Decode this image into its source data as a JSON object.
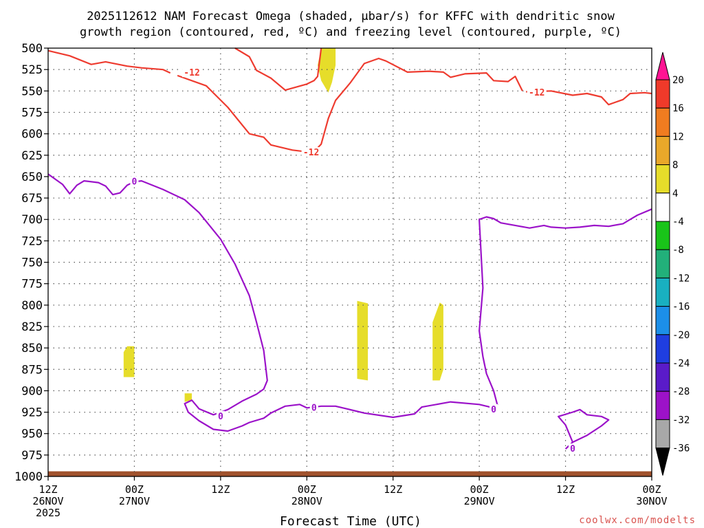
{
  "colors": {
    "omega_shade": "#e6dd2a",
    "dgz_contour": "#ee3b2f",
    "freezing_contour": "#9b12c9",
    "ground": "#a0522d",
    "credit": "#d9534f"
  },
  "chart_data": {
    "type": "area",
    "title_line1": "2025112612 NAM Forecast Omega (shaded, μbar/s) for KFFC with dendritic snow",
    "title_line2": "growth region (contoured, red, ºC) and freezing level (contoured, purple, ºC)",
    "xlabel": "Forecast Time (UTC)",
    "ylabel": "Pressure (mb)",
    "xlim_hours": [
      0,
      84
    ],
    "ylim_mb": [
      500,
      1000
    ],
    "y_ticks": [
      500,
      525,
      550,
      575,
      600,
      625,
      650,
      675,
      700,
      725,
      750,
      775,
      800,
      825,
      850,
      875,
      900,
      925,
      950,
      975,
      1000
    ],
    "y_tick_labels": [
      "500",
      "525",
      "550",
      "575",
      "600",
      "625",
      "650",
      "675",
      "700",
      "725",
      "750",
      "775",
      "800",
      "825",
      "850",
      "875",
      "900",
      "925",
      "950",
      "975",
      "1000"
    ],
    "x_ticks": [
      {
        "hour": 0,
        "top": "12Z",
        "mid": "26NOV",
        "bot": "2025"
      },
      {
        "hour": 12,
        "top": "00Z",
        "mid": "27NOV",
        "bot": ""
      },
      {
        "hour": 24,
        "top": "12Z",
        "mid": "",
        "bot": ""
      },
      {
        "hour": 36,
        "top": "00Z",
        "mid": "28NOV",
        "bot": ""
      },
      {
        "hour": 48,
        "top": "12Z",
        "mid": "",
        "bot": ""
      },
      {
        "hour": 60,
        "top": "00Z",
        "mid": "29NOV",
        "bot": ""
      },
      {
        "hour": 72,
        "top": "12Z",
        "mid": "",
        "bot": ""
      },
      {
        "hour": 84,
        "top": "00Z",
        "mid": "30NOV",
        "bot": ""
      }
    ],
    "dgz_contour": {
      "name": "-12 C",
      "segments": [
        [
          [
            0,
            503
          ],
          [
            3,
            509
          ],
          [
            6,
            519
          ],
          [
            8,
            516
          ],
          [
            11,
            521
          ],
          [
            13,
            523
          ],
          [
            16,
            525
          ],
          [
            17,
            529
          ]
        ],
        [
          [
            18,
            532
          ],
          [
            22,
            544
          ],
          [
            25,
            569
          ],
          [
            28,
            600
          ],
          [
            30,
            604
          ],
          [
            31,
            613
          ],
          [
            33,
            617
          ],
          [
            34,
            619
          ],
          [
            36,
            621
          ],
          [
            37,
            621
          ],
          [
            38,
            612
          ],
          [
            39,
            582
          ],
          [
            40,
            561
          ],
          [
            42,
            541
          ],
          [
            44,
            518
          ],
          [
            46,
            512
          ],
          [
            47,
            515
          ],
          [
            50,
            528
          ],
          [
            53,
            527
          ],
          [
            55,
            528
          ],
          [
            56,
            534
          ],
          [
            58,
            530
          ],
          [
            61,
            529
          ],
          [
            62,
            538
          ],
          [
            64,
            539
          ],
          [
            65,
            533
          ],
          [
            66,
            550
          ]
        ],
        [
          [
            26,
            500
          ],
          [
            28,
            510
          ],
          [
            29,
            526
          ],
          [
            31,
            535
          ],
          [
            33,
            549
          ],
          [
            36,
            542
          ],
          [
            37,
            538
          ],
          [
            37.5,
            533
          ],
          [
            38,
            500
          ]
        ],
        [
          [
            66.5,
            551
          ],
          [
            70,
            550
          ],
          [
            73,
            555
          ],
          [
            75,
            553
          ],
          [
            77,
            557
          ],
          [
            78,
            566
          ],
          [
            80,
            560
          ],
          [
            81,
            553
          ],
          [
            83,
            552
          ],
          [
            84,
            553
          ]
        ]
      ],
      "labels": [
        {
          "text": "-12",
          "hour": 20,
          "p": 529
        },
        {
          "text": "-12",
          "hour": 36.6,
          "p": 622
        },
        {
          "text": "-12",
          "hour": 68,
          "p": 552
        }
      ]
    },
    "freezing_contour": {
      "name": "0 C",
      "segments": [
        [
          [
            0,
            647
          ],
          [
            2,
            659
          ],
          [
            3,
            670
          ],
          [
            4,
            660
          ],
          [
            5,
            655
          ],
          [
            7,
            657
          ],
          [
            8,
            661
          ],
          [
            9,
            671
          ],
          [
            10,
            669
          ],
          [
            11,
            660
          ],
          [
            12,
            656
          ],
          [
            13,
            655
          ],
          [
            16,
            665
          ],
          [
            19,
            677
          ],
          [
            21,
            692
          ],
          [
            24,
            723
          ],
          [
            26,
            752
          ],
          [
            28,
            789
          ],
          [
            29,
            820
          ],
          [
            30,
            853
          ],
          [
            30.5,
            888
          ],
          [
            30,
            898
          ],
          [
            29,
            904
          ],
          [
            27,
            912
          ],
          [
            25,
            922
          ],
          [
            23,
            928
          ],
          [
            21,
            921
          ],
          [
            20,
            911
          ],
          [
            19,
            915
          ],
          [
            19.5,
            925
          ],
          [
            21,
            935
          ],
          [
            23,
            945
          ],
          [
            25,
            947
          ],
          [
            27,
            941
          ],
          [
            28,
            937
          ],
          [
            30,
            932
          ],
          [
            31,
            926
          ],
          [
            33,
            918
          ],
          [
            35,
            916
          ],
          [
            36,
            920
          ],
          [
            38,
            918
          ],
          [
            40,
            918
          ],
          [
            44,
            926
          ],
          [
            48,
            931
          ],
          [
            51,
            927
          ],
          [
            52,
            919
          ],
          [
            56,
            913
          ],
          [
            60,
            916
          ],
          [
            62,
            920
          ],
          [
            62.5,
            916
          ],
          [
            62,
            900
          ],
          [
            61,
            880
          ],
          [
            60.5,
            860
          ],
          [
            60,
            830
          ],
          [
            60.5,
            780
          ],
          [
            60,
            700
          ],
          [
            61,
            697
          ],
          [
            62,
            699
          ],
          [
            63,
            704
          ],
          [
            65,
            707
          ],
          [
            67,
            710
          ],
          [
            69,
            707
          ],
          [
            70,
            709
          ],
          [
            72,
            710
          ],
          [
            74,
            709
          ],
          [
            76,
            707
          ],
          [
            78,
            708
          ],
          [
            80,
            705
          ],
          [
            81,
            700
          ],
          [
            82,
            695
          ],
          [
            84,
            688
          ]
        ],
        [
          [
            72,
            968
          ],
          [
            73,
            960
          ],
          [
            72,
            940
          ],
          [
            71,
            930
          ],
          [
            73,
            925
          ],
          [
            74,
            922
          ],
          [
            75,
            928
          ],
          [
            77,
            930
          ],
          [
            78,
            934
          ],
          [
            77,
            941
          ],
          [
            75,
            952
          ],
          [
            73,
            960
          ]
        ]
      ],
      "labels": [
        {
          "text": "0",
          "hour": 12,
          "p": 656
        },
        {
          "text": "0",
          "hour": 24,
          "p": 930
        },
        {
          "text": "0",
          "hour": 37,
          "p": 920
        },
        {
          "text": "0",
          "hour": 62,
          "p": 922
        },
        {
          "text": "0",
          "hour": 73,
          "p": 968
        }
      ]
    },
    "omega_shaded_regions": [
      {
        "value_range": "4 to 8",
        "points": [
          [
            38,
            500
          ],
          [
            40,
            500
          ],
          [
            40,
            520
          ],
          [
            39.5,
            540
          ],
          [
            39,
            552
          ],
          [
            38,
            538
          ],
          [
            37.5,
            520
          ]
        ]
      },
      {
        "value_range": "4 to 8",
        "points": [
          [
            11,
            848
          ],
          [
            12,
            848
          ],
          [
            12,
            884
          ],
          [
            10.5,
            884
          ],
          [
            10.5,
            855
          ]
        ]
      },
      {
        "value_range": "4 to 8",
        "points": [
          [
            19,
            903
          ],
          [
            20,
            903
          ],
          [
            20,
            911
          ],
          [
            19,
            913
          ]
        ]
      },
      {
        "value_range": "4 to 8",
        "points": [
          [
            43,
            795
          ],
          [
            44.5,
            798
          ],
          [
            44.5,
            888
          ],
          [
            43,
            886
          ]
        ]
      },
      {
        "value_range": "4 to 8",
        "points": [
          [
            53.5,
            820
          ],
          [
            54.5,
            797
          ],
          [
            55,
            800
          ],
          [
            55,
            875
          ],
          [
            54.5,
            888
          ],
          [
            53.5,
            888
          ]
        ]
      }
    ],
    "colorbar": {
      "labels": [
        "20",
        "16",
        "12",
        "8",
        "4",
        "-4",
        "-8",
        "-12",
        "-16",
        "-20",
        "-24",
        "-28",
        "-32",
        "-36"
      ],
      "colors": [
        "#ff1493",
        "#ef3a2a",
        "#f07c20",
        "#e9a82a",
        "#e6dd2a",
        "#ffffff",
        "#19c419",
        "#22b07a",
        "#19b0c0",
        "#1c8fe8",
        "#1f3ee0",
        "#5a1bc9",
        "#9c12c8",
        "#a8a8a8",
        "#000000"
      ]
    },
    "credit": "coolwx.com/modelts"
  }
}
